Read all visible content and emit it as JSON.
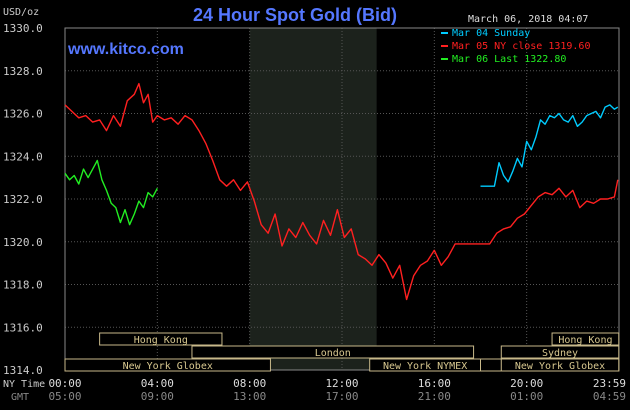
{
  "chart_data": {
    "type": "line",
    "title": "24 Hour Spot Gold (Bid)",
    "unit_label": "USD/oz",
    "source": "www.kitco.com",
    "timestamp": "March 06, 2018 04:07",
    "ylim": [
      1314,
      1330
    ],
    "y_ticks": [
      "1330.0",
      "1328.0",
      "1326.0",
      "1324.0",
      "1322.0",
      "1320.0",
      "1318.0",
      "1316.0",
      "1314.0"
    ],
    "x_ticks_ny": [
      "00:00",
      "04:00",
      "08:00",
      "12:00",
      "16:00",
      "20:00",
      "23:59"
    ],
    "x_ticks_gmt": [
      "05:00",
      "09:00",
      "13:00",
      "17:00",
      "21:00",
      "01:00",
      "04:59"
    ],
    "x_axis_label_ny": "NY Time",
    "x_axis_label_gmt": "GMT",
    "grid": true,
    "legend_position": "top-right",
    "legend": [
      {
        "label": "Mar 04 Sunday",
        "color": "#00ccff"
      },
      {
        "label": "Mar 05 NY close 1319.60",
        "color": "#ff2020"
      },
      {
        "label": "Mar 06 Last 1322.80",
        "color": "#22ee22"
      }
    ],
    "sessions": [
      {
        "label": "Hong Kong",
        "start_hour": 1.5,
        "end_hour": 6.8,
        "row": 1
      },
      {
        "label": "London",
        "start_hour": 5.5,
        "end_hour": 17.7,
        "row": 2
      },
      {
        "label": "New York Globex",
        "start_hour": 0.0,
        "end_hour": 8.9,
        "row": 3
      },
      {
        "label": "New York NYMEX",
        "start_hour": 13.2,
        "end_hour": 18.0,
        "row": 3
      },
      {
        "label": "NY Globex",
        "start_hour": 18.0,
        "end_hour": 23.99,
        "row": 3
      },
      {
        "label": "Hong Kong",
        "start_hour": 21.1,
        "end_hour": 23.99,
        "row": 1
      },
      {
        "label": "Sydney",
        "start_hour": 18.9,
        "end_hour": 23.99,
        "row": 2
      },
      {
        "label": "New York Globex",
        "start_hour": 18.9,
        "end_hour": 23.99,
        "row": 3
      }
    ],
    "shaded_region_hours": [
      8.0,
      13.5
    ],
    "series": [
      {
        "name": "Mar 04 Sunday",
        "color": "#00ccff",
        "x": [
          18.0,
          18.6,
          18.8,
          19.0,
          19.2,
          19.4,
          19.6,
          19.8,
          20.0,
          20.2,
          20.4,
          20.6,
          20.8,
          21.0,
          21.2,
          21.4,
          21.6,
          21.8,
          22.0,
          22.2,
          22.4,
          22.6,
          22.8,
          23.0,
          23.2,
          23.4,
          23.6,
          23.8,
          23.95
        ],
        "y": [
          1322.6,
          1322.6,
          1323.7,
          1323.1,
          1322.8,
          1323.3,
          1323.9,
          1323.5,
          1324.7,
          1324.3,
          1324.9,
          1325.7,
          1325.5,
          1325.9,
          1325.8,
          1326.0,
          1325.7,
          1325.6,
          1325.9,
          1325.4,
          1325.6,
          1325.9,
          1326.0,
          1326.1,
          1325.8,
          1326.3,
          1326.4,
          1326.2,
          1326.3
        ]
      },
      {
        "name": "Mar 05 NY close 1319.60",
        "color": "#ff2020",
        "x": [
          0.0,
          0.3,
          0.6,
          0.9,
          1.2,
          1.5,
          1.8,
          2.1,
          2.4,
          2.7,
          3.0,
          3.2,
          3.4,
          3.6,
          3.8,
          4.0,
          4.3,
          4.6,
          4.9,
          5.2,
          5.5,
          5.8,
          6.1,
          6.4,
          6.7,
          7.0,
          7.3,
          7.6,
          7.9,
          8.2,
          8.5,
          8.8,
          9.1,
          9.4,
          9.7,
          10.0,
          10.3,
          10.6,
          10.9,
          11.2,
          11.5,
          11.8,
          12.1,
          12.4,
          12.7,
          13.0,
          13.3,
          13.6,
          13.9,
          14.2,
          14.5,
          14.8,
          15.1,
          15.4,
          15.7,
          16.0,
          16.3,
          16.6,
          16.9,
          17.2,
          17.5,
          17.8,
          18.1,
          18.4,
          18.7,
          19.0,
          19.3,
          19.6,
          19.9,
          20.2,
          20.5,
          20.8,
          21.1,
          21.4,
          21.7,
          22.0,
          22.3,
          22.6,
          22.9,
          23.2,
          23.5,
          23.8,
          23.95
        ],
        "y": [
          1326.4,
          1326.1,
          1325.8,
          1325.9,
          1325.6,
          1325.7,
          1325.2,
          1325.9,
          1325.4,
          1326.6,
          1326.9,
          1327.4,
          1326.5,
          1326.9,
          1325.6,
          1325.9,
          1325.7,
          1325.8,
          1325.5,
          1325.9,
          1325.7,
          1325.2,
          1324.6,
          1323.8,
          1322.9,
          1322.6,
          1322.9,
          1322.4,
          1322.8,
          1321.9,
          1320.8,
          1320.4,
          1321.3,
          1319.8,
          1320.6,
          1320.2,
          1320.9,
          1320.3,
          1319.9,
          1321.0,
          1320.3,
          1321.5,
          1320.2,
          1320.6,
          1319.4,
          1319.2,
          1318.9,
          1319.4,
          1319.0,
          1318.3,
          1318.9,
          1317.3,
          1318.4,
          1318.9,
          1319.1,
          1319.6,
          1318.9,
          1319.3,
          1319.9,
          1319.9,
          1319.9,
          1319.9,
          1319.9,
          1319.9,
          1320.4,
          1320.6,
          1320.7,
          1321.1,
          1321.3,
          1321.7,
          1322.1,
          1322.3,
          1322.2,
          1322.5,
          1322.1,
          1322.4,
          1321.6,
          1321.9,
          1321.8,
          1322.0,
          1322.0,
          1322.1,
          1322.9
        ]
      },
      {
        "name": "Mar 06 Last 1322.80",
        "color": "#22ee22",
        "x": [
          0.0,
          0.2,
          0.4,
          0.6,
          0.8,
          1.0,
          1.2,
          1.4,
          1.6,
          1.8,
          2.0,
          2.2,
          2.4,
          2.6,
          2.8,
          3.0,
          3.2,
          3.4,
          3.6,
          3.8,
          4.0
        ],
        "y": [
          1323.2,
          1322.9,
          1323.1,
          1322.7,
          1323.4,
          1323.0,
          1323.4,
          1323.8,
          1322.9,
          1322.4,
          1321.8,
          1321.6,
          1320.9,
          1321.5,
          1320.8,
          1321.3,
          1321.9,
          1321.6,
          1322.3,
          1322.1,
          1322.5
        ]
      }
    ]
  }
}
